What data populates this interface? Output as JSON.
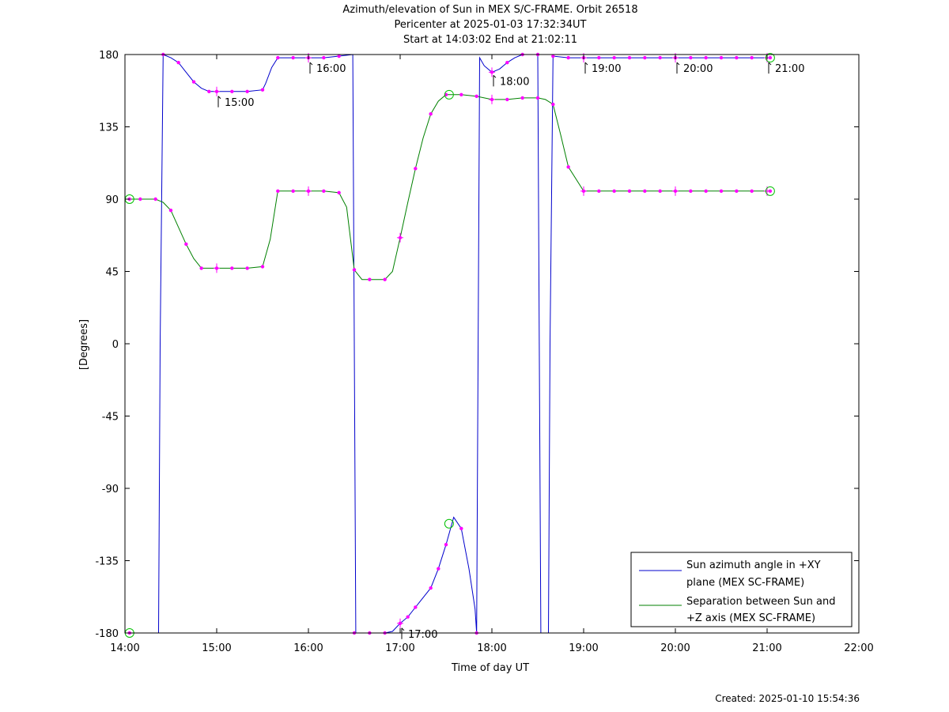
{
  "header": {
    "title": "Azimuth/elevation of Sun in MEX S/C-FRAME.  Orbit 26518",
    "pericenter": "Pericenter at 2025-01-03 17:32:34UT",
    "start_end": "Start at 14:03:02 End at 21:02:11"
  },
  "footer": {
    "created": "Created: 2025-01-10 15:54:36"
  },
  "colors": {
    "azimuth": "#0000cc",
    "separation": "#008000",
    "markers": "#ff00ff",
    "circle": "#00c000"
  },
  "chart_data": {
    "type": "line",
    "xlabel": "Time of day UT",
    "ylabel": "[Degrees]",
    "xlim": [
      "14:00",
      "22:00"
    ],
    "ylim": [
      -180,
      180
    ],
    "x_ticks": [
      "14:00",
      "15:00",
      "16:00",
      "17:00",
      "18:00",
      "19:00",
      "20:00",
      "21:00",
      "22:00"
    ],
    "y_ticks": [
      180,
      135,
      90,
      45,
      0,
      -45,
      -90,
      -135,
      -180
    ],
    "grid": false,
    "legend_position": "bottom-right",
    "annotations": [
      {
        "label": "15:00",
        "time": "15:00",
        "deg": 157
      },
      {
        "label": "16:00",
        "time": "16:00",
        "deg": 178
      },
      {
        "label": "17:00",
        "time": "17:00",
        "deg": -174
      },
      {
        "label": "18:00",
        "time": "18:00",
        "deg": 170
      },
      {
        "label": "19:00",
        "time": "19:00",
        "deg": 178
      },
      {
        "label": "20:00",
        "time": "20:00",
        "deg": 178
      },
      {
        "label": "21:00",
        "time": "21:00",
        "deg": 178
      }
    ],
    "series": [
      {
        "name": "Sun azimuth angle in +XY plane (MEX SC-FRAME)",
        "legend_lines": [
          "Sun azimuth angle in +XY",
          "plane (MEX SC-FRAME)"
        ],
        "x": [
          "14:03",
          "14:20",
          "14:22",
          "14:23",
          "14:25",
          "14:30",
          "14:35",
          "14:40",
          "14:45",
          "14:50",
          "14:55",
          "15:00",
          "15:10",
          "15:20",
          "15:30",
          "15:32",
          "15:36",
          "15:40",
          "15:45",
          "15:50",
          "16:00",
          "16:10",
          "16:20",
          "16:29",
          "16:30",
          "16:31",
          "16:32",
          "16:40",
          "16:50",
          "16:55",
          "17:00",
          "17:05",
          "17:10",
          "17:20",
          "17:25",
          "17:30",
          "17:35",
          "17:40",
          "17:45",
          "17:49",
          "17:50",
          "17:51",
          "17:52",
          "17:55",
          "18:00",
          "18:05",
          "18:10",
          "18:15",
          "18:20",
          "18:25",
          "18:30",
          "18:31",
          "18:32",
          "18:35",
          "18:37",
          "18:38",
          "18:40",
          "18:50",
          "19:00",
          "19:30",
          "20:00",
          "20:30",
          "21:02"
        ],
        "y": [
          -180,
          -180,
          -180,
          0,
          180,
          178,
          175,
          169,
          163,
          159,
          157,
          157,
          157,
          157,
          158,
          162,
          172,
          178,
          178,
          178,
          178,
          178,
          179,
          180,
          0,
          -180,
          -180,
          -180,
          -180,
          -179,
          -174,
          -170,
          -164,
          -152,
          -140,
          -125,
          -108,
          -115,
          -140,
          -165,
          -180,
          0,
          178,
          173,
          169,
          171,
          175,
          178,
          180,
          180,
          180,
          0,
          -180,
          -180,
          -180,
          0,
          179,
          178,
          178,
          178,
          178,
          178,
          178
        ]
      },
      {
        "name": "Separation between Sun and +Z axis (MEX SC-FRAME)",
        "legend_lines": [
          "Separation between Sun and",
          "+Z axis (MEX SC-FRAME)"
        ],
        "x": [
          "14:03",
          "14:10",
          "14:20",
          "14:25",
          "14:30",
          "14:40",
          "14:45",
          "14:50",
          "14:55",
          "15:00",
          "15:10",
          "15:20",
          "15:30",
          "15:35",
          "15:40",
          "15:50",
          "16:00",
          "16:10",
          "16:20",
          "16:25",
          "16:30",
          "16:35",
          "16:40",
          "16:50",
          "16:55",
          "17:00",
          "17:05",
          "17:10",
          "17:15",
          "17:20",
          "17:25",
          "17:30",
          "17:40",
          "17:50",
          "18:00",
          "18:10",
          "18:20",
          "18:30",
          "18:35",
          "18:40",
          "18:45",
          "18:50",
          "19:00",
          "19:30",
          "20:00",
          "20:30",
          "21:02"
        ],
        "y": [
          90,
          90,
          90,
          88,
          83,
          62,
          53,
          47,
          47,
          47,
          47,
          47,
          48,
          65,
          95,
          95,
          95,
          95,
          94,
          85,
          46,
          40,
          40,
          40,
          45,
          66,
          88,
          109,
          128,
          143,
          151,
          155,
          155,
          154,
          152,
          152,
          153,
          153,
          152,
          149,
          130,
          110,
          95,
          95,
          95,
          95,
          95
        ]
      }
    ],
    "markers": {
      "azimuth": {
        "times": [
          "14:03",
          "14:25",
          "14:35",
          "14:45",
          "14:55",
          "15:00",
          "15:10",
          "15:20",
          "15:30",
          "15:40",
          "15:50",
          "16:00",
          "16:10",
          "16:20",
          "16:30",
          "16:40",
          "16:50",
          "17:00",
          "17:05",
          "17:10",
          "17:20",
          "17:25",
          "17:30",
          "17:40",
          "17:50",
          "18:00",
          "18:10",
          "18:20",
          "18:30",
          "18:40",
          "18:50",
          "19:00",
          "19:10",
          "19:20",
          "19:30",
          "19:40",
          "19:50",
          "20:00",
          "20:10",
          "20:20",
          "20:30",
          "20:40",
          "20:50",
          "21:02"
        ],
        "values": [
          -180,
          180,
          175,
          163,
          157,
          157,
          157,
          157,
          158,
          178,
          178,
          178,
          178,
          179,
          -180,
          -180,
          -180,
          -174,
          -170,
          -164,
          -152,
          -140,
          -125,
          -115,
          -180,
          169,
          175,
          180,
          180,
          179,
          178,
          178,
          178,
          178,
          178,
          178,
          178,
          178,
          178,
          178,
          178,
          178,
          178,
          178
        ]
      },
      "separation": {
        "times": [
          "14:03",
          "14:10",
          "14:20",
          "14:30",
          "14:40",
          "14:50",
          "15:00",
          "15:10",
          "15:20",
          "15:30",
          "15:40",
          "15:50",
          "16:00",
          "16:10",
          "16:20",
          "16:30",
          "16:40",
          "16:50",
          "17:00",
          "17:10",
          "17:20",
          "17:30",
          "17:40",
          "17:50",
          "18:00",
          "18:10",
          "18:20",
          "18:30",
          "18:40",
          "18:50",
          "19:00",
          "19:10",
          "19:20",
          "19:30",
          "19:40",
          "19:50",
          "20:00",
          "20:10",
          "20:20",
          "20:30",
          "20:40",
          "20:50",
          "21:02"
        ],
        "values": [
          90,
          90,
          90,
          83,
          62,
          47,
          47,
          47,
          47,
          48,
          95,
          95,
          95,
          95,
          94,
          46,
          40,
          40,
          66,
          109,
          143,
          155,
          155,
          154,
          152,
          152,
          153,
          153,
          149,
          110,
          95,
          95,
          95,
          95,
          95,
          95,
          95,
          95,
          95,
          95,
          95,
          95,
          95
        ]
      },
      "hour_ticks": [
        "15:00",
        "16:00",
        "17:00",
        "18:00",
        "19:00",
        "20:00",
        "21:00"
      ],
      "endpoint_circles": [
        {
          "series": "azimuth",
          "time": "14:03",
          "value": -180
        },
        {
          "series": "separation",
          "time": "14:03",
          "value": 90
        },
        {
          "series": "azimuth",
          "time": "17:32",
          "value": -112
        },
        {
          "series": "separation",
          "time": "17:32",
          "value": 155
        },
        {
          "series": "azimuth",
          "time": "21:02",
          "value": 178
        },
        {
          "series": "separation",
          "time": "21:02",
          "value": 95
        }
      ]
    }
  }
}
